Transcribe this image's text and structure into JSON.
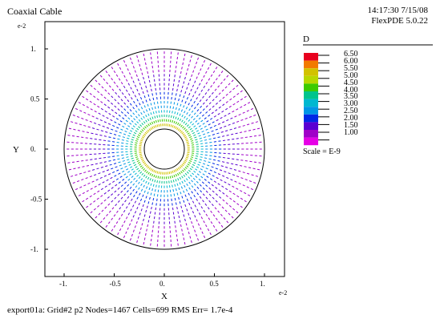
{
  "header": {
    "title": "Coaxial Cable",
    "time": "14:17:30 7/15/08",
    "version": "FlexPDE 5.0.22"
  },
  "footer": {
    "status": "export01a:  Grid#2  p2  Nodes=1467 Cells=699 RMS Err= 1.7e-4"
  },
  "colors": {
    "border": "#000000",
    "legend": [
      "#e8001e",
      "#f27a00",
      "#d2c200",
      "#b8d800",
      "#3ccb00",
      "#00c48c",
      "#00b8d0",
      "#0096e6",
      "#0028e6",
      "#5a00d2",
      "#a000c8",
      "#e600e6"
    ]
  },
  "chart_data": {
    "type": "vector-field",
    "title": "",
    "xlabel": "X",
    "ylabel": "Y",
    "x_exponent": "e-2",
    "y_exponent": "e-2",
    "xlim": [
      -1.05,
      1.05
    ],
    "ylim": [
      -1.1,
      1.1
    ],
    "xticks": [
      "-1.",
      "-0.5",
      "0.",
      "0.5",
      "1."
    ],
    "yticks": [
      "1.",
      "0.5",
      "0.",
      "-0.5",
      "-1."
    ],
    "inner_radius": 0.2,
    "outer_radius": 1.0,
    "legend": {
      "title": "D",
      "labels": [
        "6.50",
        "6.00",
        "5.50",
        "5.00",
        "4.50",
        "4.00",
        "3.50",
        "3.00",
        "2.50",
        "2.00",
        "1.50",
        "1.00"
      ],
      "scale": "Scale = E-9"
    }
  }
}
